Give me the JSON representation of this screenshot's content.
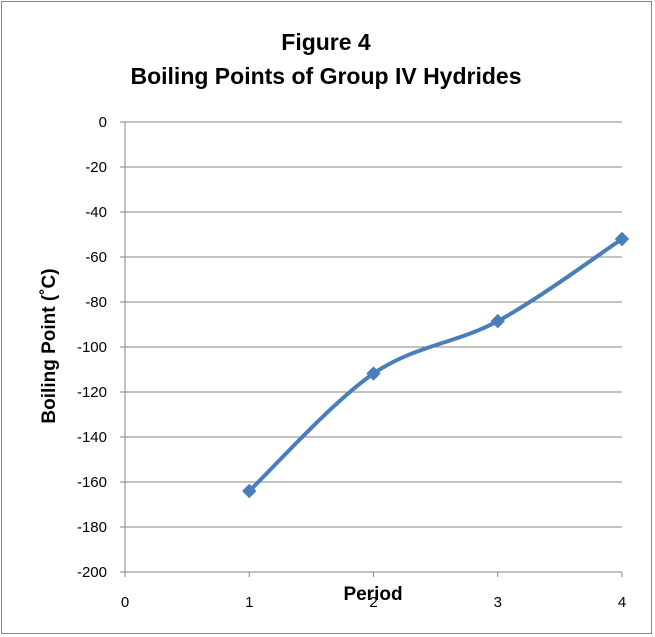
{
  "chart_data": {
    "type": "scatter",
    "title": [
      "Figure 4",
      "Boiling Points of Group IV Hydrides"
    ],
    "xlabel": "Period",
    "ylabel": "Boiling Point (˚C)",
    "xlim": [
      0,
      4
    ],
    "ylim": [
      -200,
      0
    ],
    "x_ticks": [
      "0",
      "1",
      "2",
      "3",
      "4"
    ],
    "y_ticks": [
      "0",
      "-20",
      "-40",
      "-60",
      "-80",
      "-100",
      "-120",
      "-140",
      "-160",
      "-180",
      "-200"
    ],
    "grid": "horizontal",
    "line": "smoothed",
    "marker": "diamond",
    "series": [
      {
        "x": [
          1,
          2,
          3,
          4
        ],
        "y": [
          -164,
          -111.8,
          -88.5,
          -52
        ],
        "color": "#4a7ebb"
      }
    ]
  }
}
